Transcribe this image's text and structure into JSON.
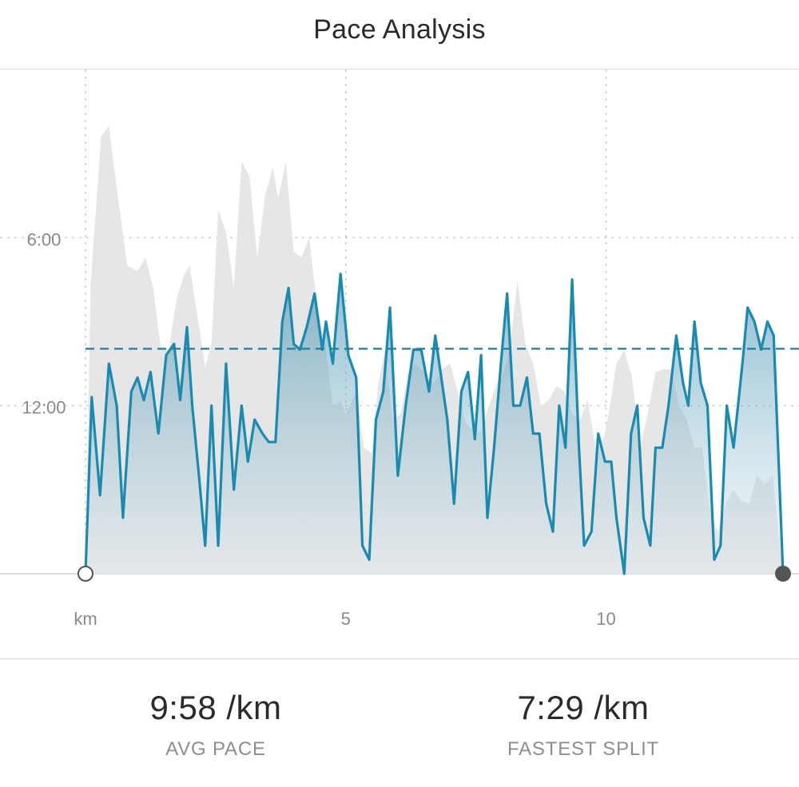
{
  "header": {
    "title": "Pace Analysis"
  },
  "colors": {
    "pace_line": "#1a8bb0",
    "average_line": "#1f7f9c",
    "elevation_fill": "#e6e6e6",
    "grid": "#c8c8c8",
    "label": "#8a8a8a",
    "end_marker": "#555555"
  },
  "stats": [
    {
      "value": "9:58 /km",
      "label": "AVG PACE"
    },
    {
      "value": "7:29 /km",
      "label": "FASTEST SPLIT"
    }
  ],
  "chart_data": {
    "type": "area",
    "title": "Pace Analysis",
    "x_unit_label": "km",
    "x_ticks": [
      5,
      10
    ],
    "y_ticks": [
      {
        "value": 6,
        "label": "6:00"
      },
      {
        "value": 12,
        "label": "12:00"
      }
    ],
    "xlim": [
      0,
      13.4
    ],
    "ylim": [
      18,
      0
    ],
    "y_axis_inverted": true,
    "grid": true,
    "average_pace": 9.97,
    "series": [
      {
        "kind": "pace",
        "x": [
          0,
          0.12,
          0.28,
          0.45,
          0.6,
          0.72,
          0.88,
          1.0,
          1.12,
          1.25,
          1.4,
          1.55,
          1.7,
          1.82,
          1.95,
          2.05,
          2.18,
          2.3,
          2.42,
          2.55,
          2.7,
          2.85,
          3.0,
          3.12,
          3.25,
          3.4,
          3.52,
          3.65,
          3.78,
          3.9,
          4.0,
          4.12,
          4.25,
          4.4,
          4.55,
          4.62,
          4.75,
          4.9,
          5.05,
          5.2,
          5.32,
          5.45,
          5.58,
          5.72,
          5.85,
          6.0,
          6.15,
          6.3,
          6.45,
          6.6,
          6.72,
          6.85,
          6.95,
          7.08,
          7.22,
          7.35,
          7.48,
          7.6,
          7.72,
          7.85,
          7.98,
          8.1,
          8.22,
          8.35,
          8.48,
          8.6,
          8.72,
          8.85,
          8.98,
          9.1,
          9.22,
          9.35,
          9.48,
          9.58,
          9.72,
          9.85,
          9.98,
          10.1,
          10.2,
          10.35,
          10.48,
          10.6,
          10.72,
          10.85,
          10.95,
          11.08,
          11.2,
          11.35,
          11.48,
          11.58,
          11.7,
          11.82,
          11.95,
          12.08,
          12.2,
          12.32,
          12.45,
          12.62,
          12.72,
          12.85,
          12.98,
          13.1,
          13.22,
          13.4
        ],
        "y": [
          18,
          11.7,
          15.2,
          10.5,
          12.0,
          16.0,
          11.5,
          11.0,
          11.8,
          10.8,
          13.0,
          10.2,
          9.8,
          11.8,
          9.2,
          12.0,
          14.5,
          17.0,
          12.0,
          17.0,
          10.5,
          15.0,
          12.0,
          14.0,
          12.5,
          13.0,
          13.3,
          13.3,
          9.0,
          7.8,
          9.8,
          10.0,
          9.2,
          8.0,
          10.0,
          9.0,
          10.5,
          7.3,
          10.2,
          11.0,
          17.0,
          17.5,
          12.5,
          11.5,
          8.5,
          14.5,
          12.0,
          10.0,
          10.0,
          11.5,
          9.5,
          11.2,
          12.5,
          15.5,
          11.5,
          10.8,
          13.2,
          10.2,
          16.0,
          13.5,
          10.5,
          8.0,
          12.0,
          12.0,
          11.0,
          13.0,
          13.0,
          15.5,
          16.5,
          12.0,
          13.5,
          7.5,
          13.5,
          17.0,
          16.5,
          13.0,
          14.0,
          14.0,
          16.0,
          18.0,
          13.0,
          12.0,
          16.0,
          17.0,
          13.5,
          13.5,
          12.0,
          9.5,
          11.2,
          12.0,
          9.0,
          11.2,
          12.0,
          17.5,
          17.0,
          12.0,
          13.5,
          10.5,
          8.5,
          9.0,
          10.0,
          9.0,
          9.5,
          18.0
        ]
      },
      {
        "kind": "elevation",
        "x": [
          0,
          0.1,
          0.3,
          0.45,
          0.55,
          0.7,
          0.8,
          1.0,
          1.15,
          1.3,
          1.45,
          1.6,
          1.75,
          1.9,
          2.0,
          2.15,
          2.3,
          2.42,
          2.55,
          2.7,
          2.85,
          3.0,
          3.15,
          3.3,
          3.45,
          3.6,
          3.7,
          3.85,
          4.0,
          4.15,
          4.3,
          4.45,
          4.6,
          4.75,
          4.9,
          5.0,
          5.2,
          5.35,
          5.5,
          5.62,
          5.75,
          5.9,
          6.05,
          6.2,
          6.35,
          6.5,
          6.7,
          6.85,
          7.0,
          7.15,
          7.3,
          7.45,
          7.6,
          7.75,
          7.9,
          8.0,
          8.15,
          8.3,
          8.45,
          8.6,
          8.75,
          8.9,
          9.05,
          9.2,
          9.35,
          9.5,
          9.65,
          9.8,
          9.95,
          10.05,
          10.2,
          10.35,
          10.5,
          10.65,
          10.8,
          10.95,
          11.1,
          11.25,
          11.4,
          11.55,
          11.7,
          11.85,
          12.0,
          12.15,
          12.3,
          12.45,
          12.6,
          12.75,
          12.9,
          13.05,
          13.2,
          13.4
        ],
        "y": [
          18,
          7.6,
          2.4,
          2.0,
          3.5,
          5.6,
          7.0,
          7.2,
          6.7,
          7.8,
          10.0,
          10.0,
          8.2,
          7.3,
          7.0,
          8.8,
          10.6,
          9.8,
          5.0,
          5.8,
          7.8,
          3.3,
          3.8,
          6.7,
          4.5,
          3.5,
          4.6,
          3.3,
          6.5,
          6.7,
          6.0,
          8.5,
          9.7,
          12.0,
          11.8,
          12.3,
          11.5,
          13.5,
          13.7,
          11.3,
          10.0,
          12.5,
          12.3,
          10.8,
          10.5,
          10.8,
          11.2,
          10.7,
          10.5,
          11.5,
          12.6,
          12.9,
          12.9,
          12.0,
          11.2,
          11.0,
          10.0,
          7.5,
          9.8,
          10.5,
          12.0,
          11.8,
          11.3,
          11.5,
          12.3,
          12.5,
          11.8,
          13.5,
          13.2,
          12.3,
          10.5,
          10.0,
          11.0,
          13.5,
          12.3,
          10.8,
          10.7,
          10.7,
          12.0,
          12.5,
          13.5,
          13.5,
          15.8,
          16.5,
          15.5,
          15.0,
          15.4,
          15.5,
          14.5,
          14.8,
          14.5,
          18.0
        ]
      }
    ]
  }
}
